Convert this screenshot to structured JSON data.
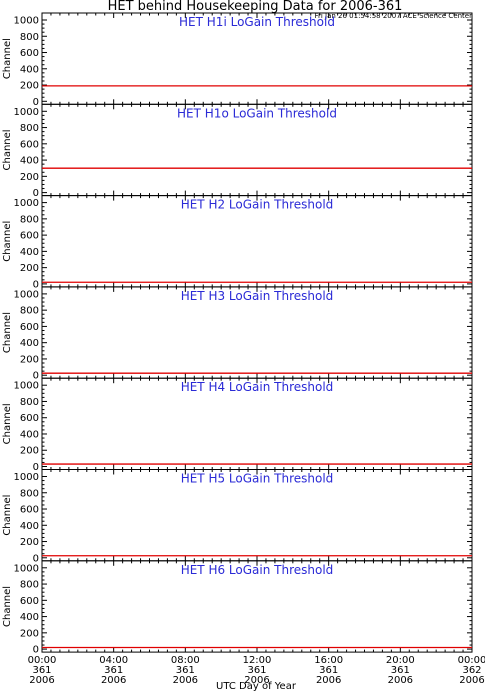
{
  "title": "HET behind Housekeeping Data for 2006-361",
  "timestamp": "Fri Jan 26 01:54:58 2007 ACE Science Center",
  "chart_data": {
    "type": "line",
    "xlabel": "UTC Day of Year",
    "ylabel": "Channel",
    "xlim": [
      0,
      24
    ],
    "ylim": [
      0,
      1000
    ],
    "yticks": [
      "0",
      "200",
      "400",
      "600",
      "800",
      "1000"
    ],
    "xticks": [
      {
        "hour": 0,
        "time": "00:00",
        "doy": "361",
        "year": "2006"
      },
      {
        "hour": 4,
        "time": "04:00",
        "doy": "361",
        "year": "2006"
      },
      {
        "hour": 8,
        "time": "08:00",
        "doy": "361",
        "year": "2006"
      },
      {
        "hour": 12,
        "time": "12:00",
        "doy": "361",
        "year": "2006"
      },
      {
        "hour": 16,
        "time": "16:00",
        "doy": "361",
        "year": "2006"
      },
      {
        "hour": 20,
        "time": "20:00",
        "doy": "361",
        "year": "2006"
      },
      {
        "hour": 24,
        "time": "00:00",
        "doy": "362",
        "year": "2006"
      }
    ],
    "line_color": "#e00000",
    "panels": [
      {
        "title": "HET H1i LoGain Threshold",
        "x": [
          0,
          24
        ],
        "y": [
          190,
          190
        ]
      },
      {
        "title": "HET H1o LoGain Threshold",
        "x": [
          0,
          24
        ],
        "y": [
          300,
          300
        ]
      },
      {
        "title": "HET H2 LoGain Threshold",
        "x": [
          0,
          24
        ],
        "y": [
          20,
          20
        ]
      },
      {
        "title": "HET H3 LoGain Threshold",
        "x": [
          0,
          24
        ],
        "y": [
          25,
          25
        ]
      },
      {
        "title": "HET H4 LoGain Threshold",
        "x": [
          0,
          24
        ],
        "y": [
          30,
          30
        ]
      },
      {
        "title": "HET H5 LoGain Threshold",
        "x": [
          0,
          24
        ],
        "y": [
          25,
          25
        ]
      },
      {
        "title": "HET H6 LoGain Threshold",
        "x": [
          0,
          24
        ],
        "y": [
          20,
          20
        ]
      }
    ]
  }
}
